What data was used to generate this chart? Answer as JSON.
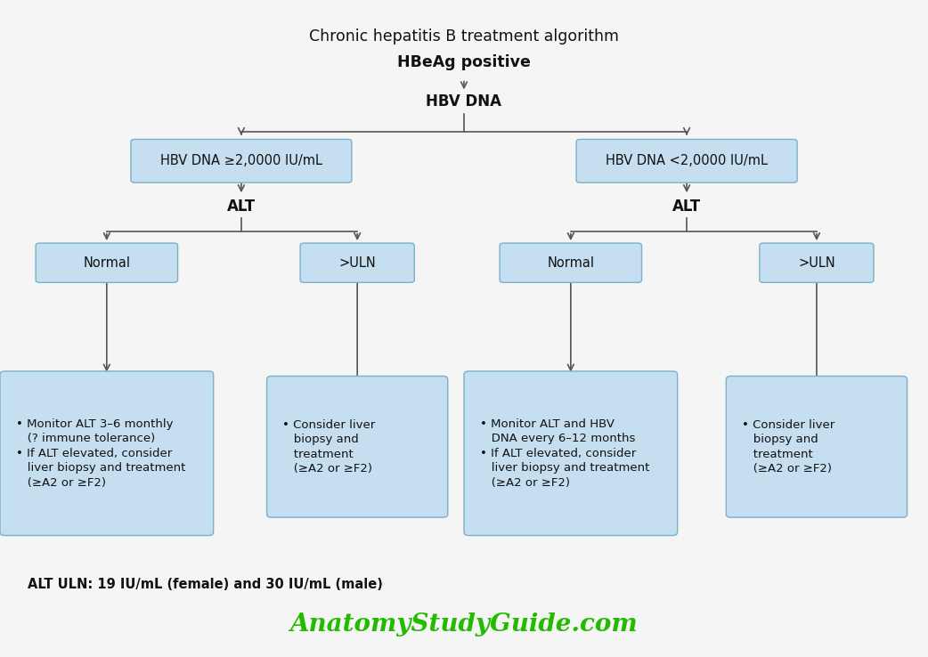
{
  "title_line1": "Chronic hepatitis B treatment algorithm",
  "title_line2": "HBeAg positive",
  "title_fontsize": 12.5,
  "background_color": "#f5f5f5",
  "box_fill_color": "#c5dff0",
  "box_fill_color2": "#b8d8ee",
  "box_edge_color": "#7ab0cc",
  "arrow_color": "#555555",
  "text_color": "#111111",
  "alt_text_color": "#333333",
  "footnote": "ALT ULN: 19 IU/mL (female) and 30 IU/mL (male)",
  "footnote_fontsize": 10.5,
  "watermark": "AnatomyStudyGuide.com",
  "watermark_color": "#22bb00",
  "watermark_fontsize": 20,
  "hbv_dna_label": "HBV DNA",
  "left_dna_label": "HBV DNA ≥2,0000 IU/mL",
  "right_dna_label": "HBV DNA <2,0000 IU/mL",
  "alt_label": "ALT",
  "normal_label": "Normal",
  "uln_label": ">ULN",
  "ll_result_text": "• Monitor ALT 3–6 monthly\n   (? immune tolerance)\n• If ALT elevated, consider\n   liver biopsy and treatment\n   (≥A2 or ≥F2)",
  "lr_result_text": "• Consider liver\n   biopsy and\n   treatment\n   (≥A2 or ≥F2)",
  "rl_result_text": "• Monitor ALT and HBV\n   DNA every 6–12 months\n• If ALT elevated, consider\n   liver biopsy and treatment\n   (≥A2 or ≥F2)",
  "rr_result_text": "• Consider liver\n   biopsy and\n   treatment\n   (≥A2 or ≥F2)"
}
